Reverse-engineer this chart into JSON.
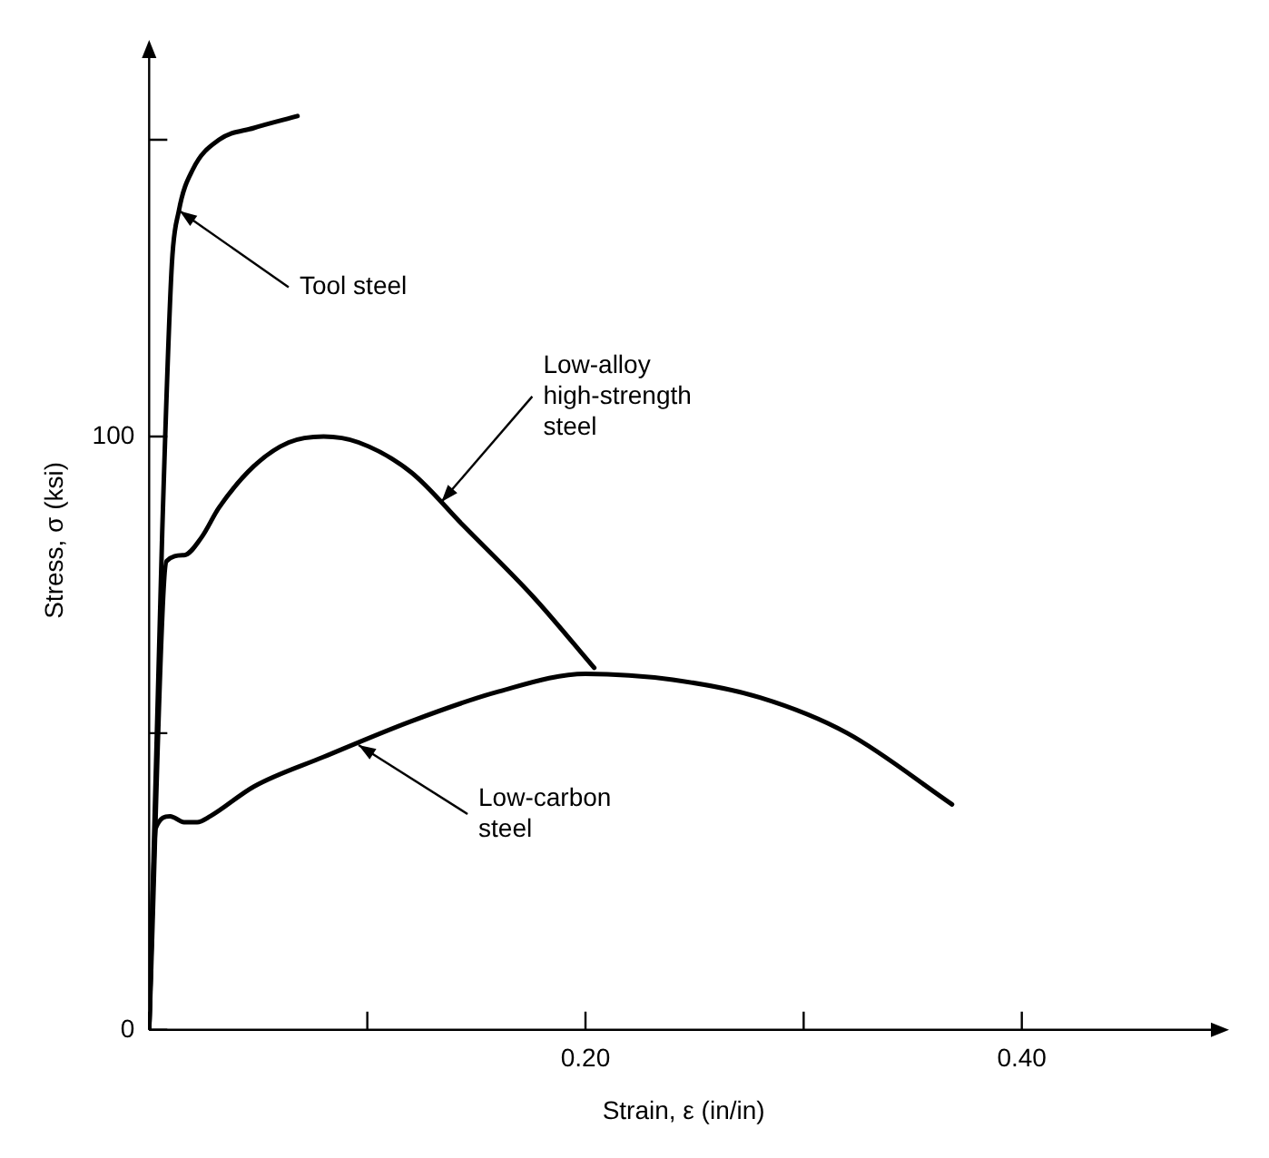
{
  "chart_data": {
    "type": "line",
    "xlabel": "Strain, ε (in/in)",
    "ylabel": "Stress, σ (ksi)",
    "xlim": [
      0,
      0.49
    ],
    "ylim": [
      0,
      165
    ],
    "xticks": [
      {
        "value": 0,
        "label": null
      },
      {
        "value": 0.1,
        "label": null
      },
      {
        "value": 0.2,
        "label": "0.20"
      },
      {
        "value": 0.3,
        "label": null
      },
      {
        "value": 0.4,
        "label": "0.40"
      }
    ],
    "yticks": [
      0,
      {
        "value": 50,
        "label": null
      },
      100,
      {
        "value": 150,
        "label": null
      }
    ],
    "grid": false,
    "legend": false,
    "marker": "none",
    "line_style": "solid",
    "series": [
      {
        "color": "#000000",
        "x": [
          0,
          0.006,
          0.0104,
          0.0136,
          0.02,
          0.032,
          0.048,
          0.068
        ],
        "values": [
          0,
          84,
          129,
          138,
          145,
          150,
          152,
          154
        ]
      },
      {
        "color": "#000000",
        "x": [
          0,
          0.008,
          0.016,
          0.024,
          0.032,
          0.048,
          0.064,
          0.08,
          0.096,
          0.12,
          0.144,
          0.176,
          0.204
        ],
        "values": [
          0,
          79,
          80,
          83,
          88,
          95,
          99,
          100,
          99,
          94,
          85,
          73,
          61
        ]
      },
      {
        "color": "#000000",
        "x": [
          0,
          0.003,
          0.0096,
          0.016,
          0.022,
          0.028,
          0.048,
          0.08,
          0.12,
          0.16,
          0.2,
          0.24,
          0.28,
          0.32,
          0.368
        ],
        "values": [
          0,
          34,
          36,
          35,
          35,
          36,
          41,
          46,
          52,
          57,
          60,
          59,
          56,
          50,
          38
        ]
      }
    ],
    "annotations": [
      {
        "text": "Tool steel",
        "x": 0.014,
        "y": 138
      },
      {
        "text": "Low-alloy\nhigh-strength\nsteel",
        "x": 0.134,
        "y": 89
      },
      {
        "text": "Low-carbon\nsteel",
        "x": 0.096,
        "y": 48
      }
    ]
  }
}
